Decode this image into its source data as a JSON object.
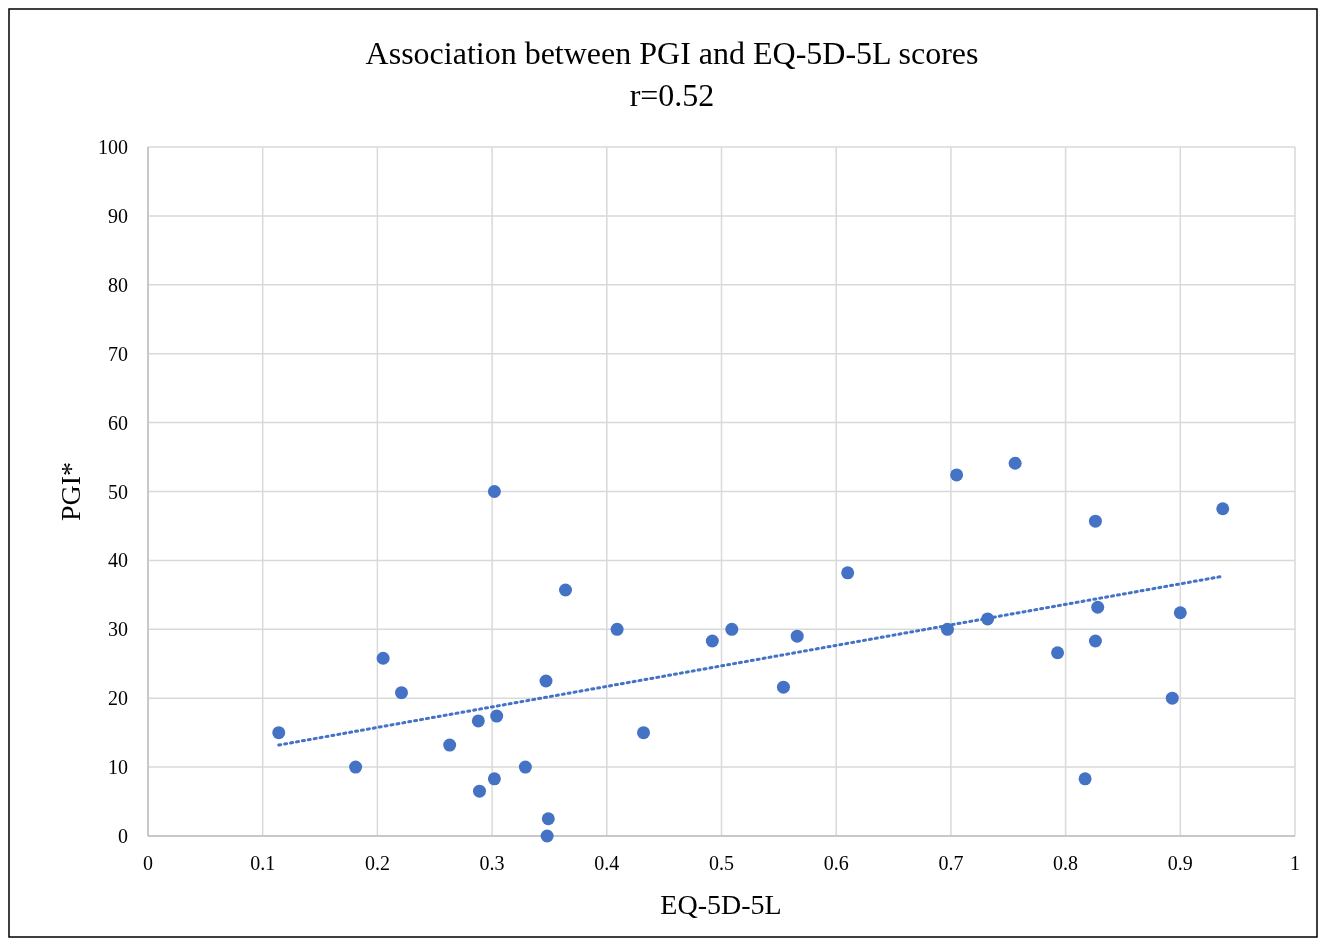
{
  "chart_data": {
    "type": "scatter",
    "title": "Association between PGI and EQ-5D-5L scores",
    "subtitle": "r=0.52",
    "xlabel": "EQ-5D-5L",
    "ylabel": "PGI*",
    "xlim": [
      0,
      1
    ],
    "xticks": [
      0,
      0.1,
      0.2,
      0.3,
      0.4,
      0.5,
      0.6,
      0.7,
      0.8,
      0.9,
      1
    ],
    "ylim": [
      0,
      100
    ],
    "yticks": [
      0,
      10,
      20,
      30,
      40,
      50,
      60,
      70,
      80,
      90,
      100
    ],
    "grid": true,
    "marker": "circle",
    "series": [
      {
        "color": "#4472c4",
        "x": [
          0.114,
          0.181,
          0.205,
          0.221,
          0.263,
          0.288,
          0.289,
          0.302,
          0.302,
          0.304,
          0.329,
          0.347,
          0.349,
          0.348,
          0.364,
          0.409,
          0.432,
          0.492,
          0.509,
          0.554,
          0.566,
          0.61,
          0.697,
          0.705,
          0.732,
          0.756,
          0.793,
          0.817,
          0.826,
          0.826,
          0.828,
          0.893,
          0.9,
          0.937
        ],
        "values": [
          15,
          10,
          25.8,
          20.8,
          13.2,
          16.7,
          6.5,
          50,
          8.3,
          17.4,
          10,
          22.5,
          2.5,
          0,
          35.7,
          30,
          15,
          28.3,
          30,
          21.6,
          29,
          38.2,
          30,
          52.4,
          31.5,
          54.1,
          26.6,
          8.3,
          45.7,
          28.3,
          33.2,
          20,
          32.4,
          47.5
        ]
      },
      {
        "type": "line",
        "color": "#4472c4",
        "x": [
          0.114,
          0.937
        ],
        "values": [
          13.2,
          37.7
        ],
        "marker": "none",
        "line_style": "dotted"
      }
    ]
  }
}
